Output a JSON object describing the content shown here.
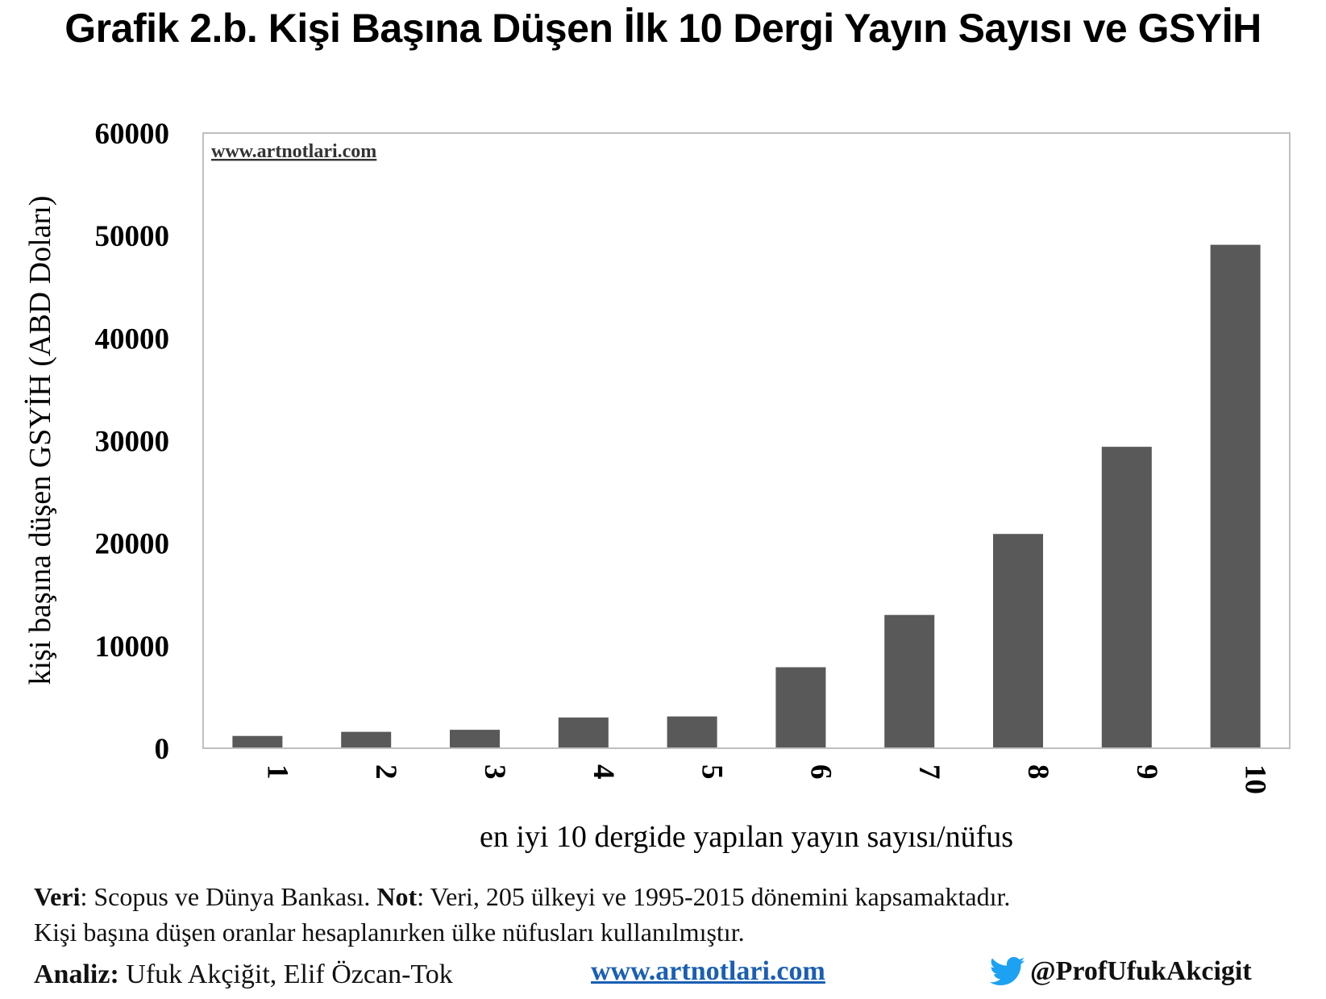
{
  "title": "Grafik 2.b. Kişi Başına Düşen İlk 10 Dergi Yayın Sayısı ve GSYİH",
  "watermark": "www.artnotlari.com",
  "chart_data": {
    "type": "bar",
    "categories": [
      "1",
      "2",
      "3",
      "4",
      "5",
      "6",
      "7",
      "8",
      "9",
      "10"
    ],
    "values": [
      1200,
      1600,
      1800,
      3000,
      3100,
      7900,
      13000,
      20900,
      29400,
      49100
    ],
    "xlabel": "en iyi 10 dergide yapılan yayın sayısı/nüfus",
    "ylabel": "kişi başına düşen GSYİH (ABD Doları)",
    "ylim": [
      0,
      60000
    ],
    "yticks": [
      "0",
      "10000",
      "20000",
      "30000",
      "40000",
      "50000",
      "60000"
    ],
    "bar_color": "#595959",
    "grid": false
  },
  "notes": {
    "veri_label": "Veri",
    "veri_text": ": Scopus ve Dünya Bankası. ",
    "not_label": "Not",
    "not_text": ": Veri, 205 ülkeyi ve 1995-2015 dönemini kapsamaktadır.",
    "line2": "Kişi başına düşen oranlar hesaplanırken ülke nüfusları kullanılmıştır."
  },
  "footer": {
    "analiz_label": "Analiz:",
    "analiz_text": " Ufuk Akçiğit, Elif Özcan-Tok",
    "link": "www.artnotlari.com",
    "twitter_handle": "@ProfUfukAkcigit",
    "twitter_icon": "twitter-bird-icon",
    "link_color": "#1a5fb4",
    "twitter_color": "#1da1f2"
  }
}
